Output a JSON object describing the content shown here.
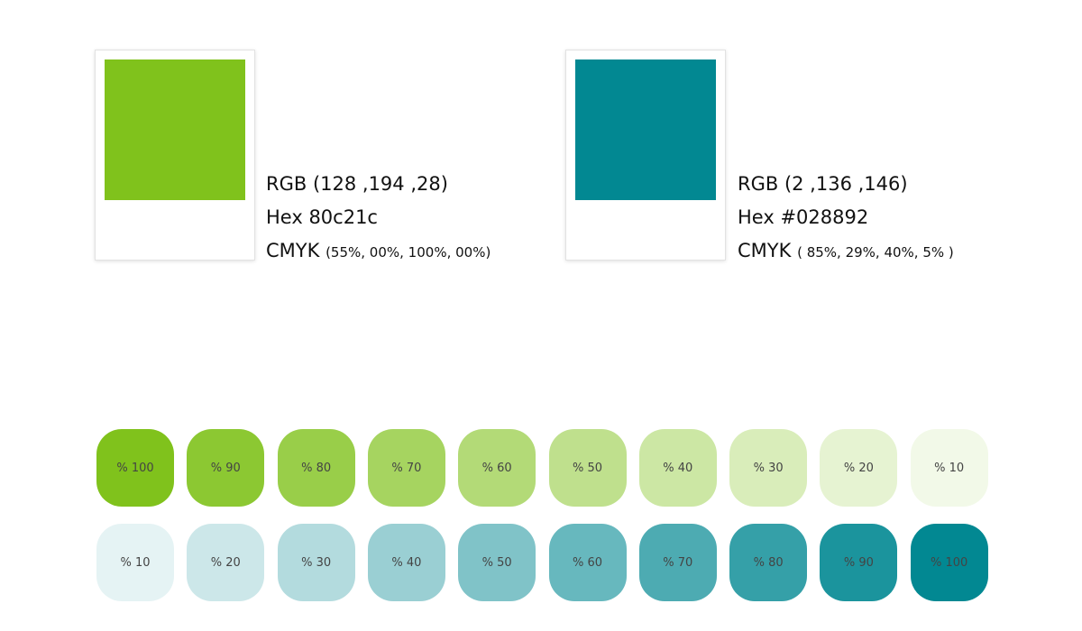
{
  "swatches": [
    {
      "color": "#80c21c",
      "rgb": "RGB (128 ,194 ,28)",
      "hex": "Hex 80c21c",
      "cmyk_label": "CMYK",
      "cmyk_values": "(55%, 00%, 100%, 00%)"
    },
    {
      "color": "#028892",
      "rgb": "RGB (2 ,136 ,146)",
      "hex": "Hex #028892",
      "cmyk_label": "CMYK",
      "cmyk_values": "(  85%, 29%, 40%, 5%  )"
    }
  ],
  "tint_rows": [
    {
      "color": "#80c21c",
      "tints": [
        {
          "value": 100,
          "label": "% 100"
        },
        {
          "value": 90,
          "label": "% 90"
        },
        {
          "value": 80,
          "label": "% 80"
        },
        {
          "value": 70,
          "label": "% 70"
        },
        {
          "value": 60,
          "label": "% 60"
        },
        {
          "value": 50,
          "label": "% 50"
        },
        {
          "value": 40,
          "label": "% 40"
        },
        {
          "value": 30,
          "label": "% 30"
        },
        {
          "value": 20,
          "label": "% 20"
        },
        {
          "value": 10,
          "label": "% 10"
        }
      ]
    },
    {
      "color": "#028892",
      "tints": [
        {
          "value": 10,
          "label": "% 10"
        },
        {
          "value": 20,
          "label": "% 20"
        },
        {
          "value": 30,
          "label": "% 30"
        },
        {
          "value": 40,
          "label": "% 40"
        },
        {
          "value": 50,
          "label": "% 50"
        },
        {
          "value": 60,
          "label": "% 60"
        },
        {
          "value": 70,
          "label": "% 70"
        },
        {
          "value": 80,
          "label": "% 80"
        },
        {
          "value": 90,
          "label": "% 90"
        },
        {
          "value": 100,
          "label": "% 100"
        }
      ]
    }
  ]
}
